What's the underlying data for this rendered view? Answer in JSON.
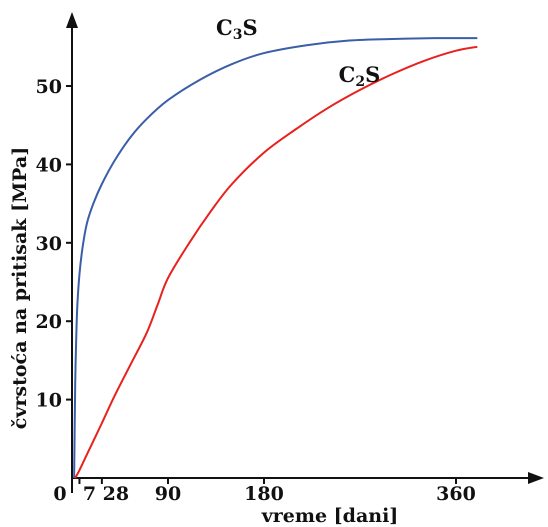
{
  "chart_data": {
    "type": "line",
    "title": "",
    "xlabel": "vreme [dani]",
    "ylabel": "čvrstoća na pritisak [MPa]",
    "xlim": [
      0,
      400
    ],
    "ylim": [
      0,
      60
    ],
    "x_ticks": [
      {
        "value": 0,
        "label": "0"
      },
      {
        "value": 7,
        "label": "7"
      },
      {
        "value": 28,
        "label": "28"
      },
      {
        "value": 90,
        "label": "90"
      },
      {
        "value": 180,
        "label": "180"
      },
      {
        "value": 360,
        "label": "360"
      }
    ],
    "y_ticks": [
      {
        "value": 10,
        "label": "10"
      },
      {
        "value": 20,
        "label": "20"
      },
      {
        "value": 30,
        "label": "30"
      },
      {
        "value": 40,
        "label": "40"
      },
      {
        "value": 50,
        "label": "50"
      }
    ],
    "grid": false,
    "series": [
      {
        "name": "C3S",
        "label_main": "C",
        "label_sub": "3",
        "label_tail": "S",
        "color": "#3a5ea8",
        "x": [
          2,
          3,
          4,
          5,
          7,
          10,
          14,
          20,
          28,
          40,
          55,
          70,
          90,
          120,
          150,
          180,
          220,
          260,
          300,
          340,
          360,
          380
        ],
        "y": [
          0,
          12,
          18,
          22,
          26,
          29.5,
          32.5,
          35,
          37.5,
          40.5,
          43.5,
          45.8,
          48.2,
          50.8,
          52.8,
          54.2,
          55.2,
          55.8,
          56.0,
          56.1,
          56.1,
          56.1
        ]
      },
      {
        "name": "C2S",
        "label_main": "C",
        "label_sub": "2",
        "label_tail": "S",
        "color": "#e8211c",
        "x": [
          3,
          7,
          14,
          28,
          40,
          55,
          70,
          80,
          90,
          110,
          130,
          150,
          180,
          210,
          240,
          270,
          300,
          330,
          360,
          380
        ],
        "y": [
          0,
          1,
          3,
          7,
          10.5,
          14.5,
          18.5,
          22,
          25.5,
          30,
          34,
          37.5,
          41.5,
          44.5,
          47.2,
          49.5,
          51.5,
          53.2,
          54.5,
          55
        ]
      }
    ],
    "annotations": [
      {
        "series": "C3S",
        "x": 135,
        "y": 56.5
      },
      {
        "series": "C2S",
        "x": 250,
        "y": 50.5
      }
    ]
  }
}
